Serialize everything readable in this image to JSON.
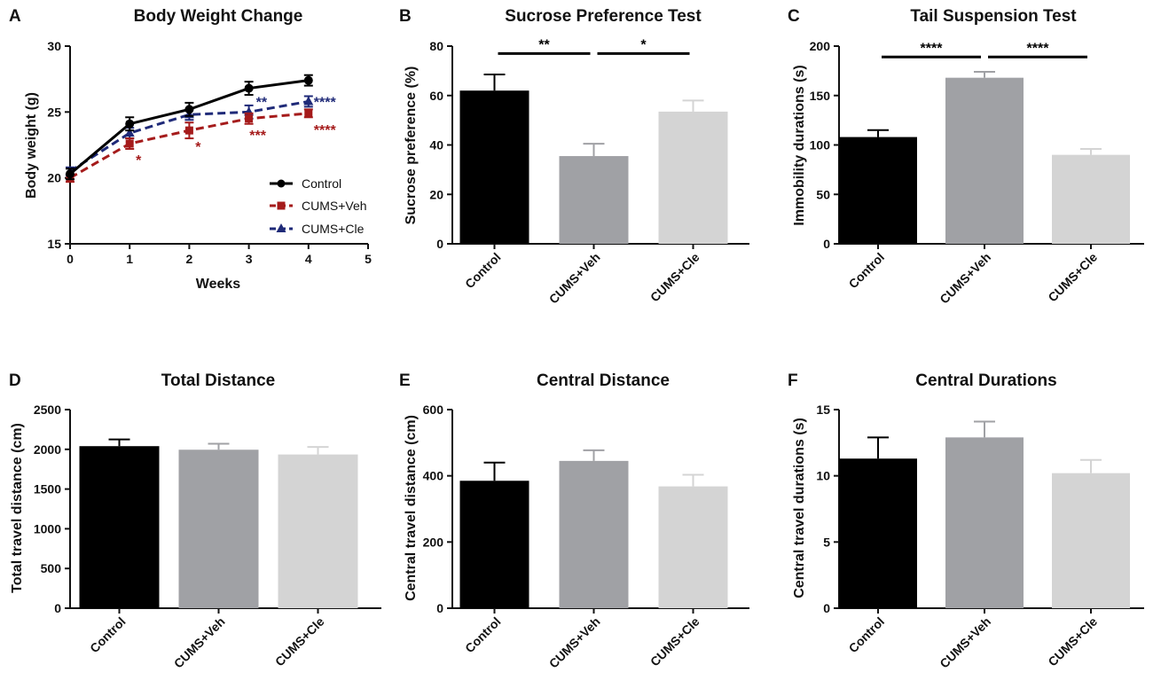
{
  "colors": {
    "control": "#000000",
    "veh_bar": "#a0a1a5",
    "cle_bar": "#d4d4d4",
    "veh_line": "#a51b1b",
    "cle_line": "#1f2a78"
  },
  "chart_data": [
    {
      "id": "A",
      "panel_label": "A",
      "type": "line",
      "title": "Body Weight Change",
      "xlabel": "Weeks",
      "ylabel": "Body weight (g)",
      "xlim": [
        0,
        5
      ],
      "ylim": [
        15,
        30
      ],
      "xticks": [
        0,
        1,
        2,
        3,
        4,
        5
      ],
      "yticks": [
        15,
        20,
        25,
        30
      ],
      "x": [
        0,
        1,
        2,
        3,
        4
      ],
      "series": [
        {
          "name": "Control",
          "values": [
            20.3,
            24.1,
            25.2,
            26.8,
            27.4
          ],
          "errors": [
            0.4,
            0.5,
            0.5,
            0.5,
            0.4
          ],
          "style": "solid",
          "marker": "circle",
          "color": "#000000"
        },
        {
          "name": "CUMS+Veh",
          "values": [
            20.0,
            22.6,
            23.6,
            24.5,
            24.9
          ],
          "errors": [
            0.3,
            0.4,
            0.6,
            0.4,
            0.3
          ],
          "style": "dashed",
          "marker": "square",
          "color": "#a51b1b"
        },
        {
          "name": "CUMS+Cle",
          "values": [
            20.5,
            23.4,
            24.8,
            25.0,
            25.8
          ],
          "errors": [
            0.3,
            0.4,
            0.4,
            0.5,
            0.4
          ],
          "style": "dashed",
          "marker": "triangle",
          "color": "#1f2a78"
        }
      ],
      "legend": [
        "Control",
        "CUMS+Veh",
        "CUMS+Cle"
      ],
      "legend_position": "bottom-right",
      "annotations": [
        {
          "text": "*",
          "x": 1,
          "series": "CUMS+Veh",
          "placement": "below",
          "color": "#a51b1b"
        },
        {
          "text": "*",
          "x": 2,
          "series": "CUMS+Veh",
          "placement": "below",
          "color": "#a51b1b"
        },
        {
          "text": "***",
          "x": 3,
          "series": "CUMS+Veh",
          "placement": "below",
          "color": "#a51b1b"
        },
        {
          "text": "****",
          "x": 4,
          "series": "CUMS+Veh",
          "placement": "right-below",
          "color": "#a51b1b"
        },
        {
          "text": "**",
          "x": 3,
          "series": "CUMS+Cle",
          "placement": "above-right",
          "color": "#1f2a78"
        },
        {
          "text": "****",
          "x": 4,
          "series": "CUMS+Cle",
          "placement": "right",
          "color": "#1f2a78"
        }
      ]
    },
    {
      "id": "B",
      "panel_label": "B",
      "type": "bar",
      "title": "Sucrose Preference Test",
      "ylabel": "Sucrose preference (%)",
      "categories": [
        "Control",
        "CUMS+Veh",
        "CUMS+Cle"
      ],
      "values": [
        62,
        35.5,
        53.5
      ],
      "errors": [
        6.5,
        5,
        4.5
      ],
      "ylim": [
        0,
        80
      ],
      "yticks": [
        0,
        20,
        40,
        60,
        80
      ],
      "significance": [
        {
          "from": 0,
          "to": 1,
          "label": "**",
          "y": 77
        },
        {
          "from": 1,
          "to": 2,
          "label": "*",
          "y": 77
        }
      ]
    },
    {
      "id": "C",
      "panel_label": "C",
      "type": "bar",
      "title": "Tail Suspension Test",
      "ylabel": "Immobility durations (s)",
      "categories": [
        "Control",
        "CUMS+Veh",
        "CUMS+Cle"
      ],
      "values": [
        108,
        168,
        90
      ],
      "errors": [
        7,
        6,
        6
      ],
      "ylim": [
        0,
        200
      ],
      "yticks": [
        0,
        50,
        100,
        150,
        200
      ],
      "significance": [
        {
          "from": 0,
          "to": 1,
          "label": "****",
          "y": 189
        },
        {
          "from": 1,
          "to": 2,
          "label": "****",
          "y": 189
        }
      ]
    },
    {
      "id": "D",
      "panel_label": "D",
      "type": "bar",
      "title": "Total Distance",
      "ylabel": "Total travel distance (cm)",
      "categories": [
        "Control",
        "CUMS+Veh",
        "CUMS+Cle"
      ],
      "values": [
        2040,
        1995,
        1935
      ],
      "errors": [
        85,
        75,
        95
      ],
      "ylim": [
        0,
        2500
      ],
      "yticks": [
        0,
        500,
        1000,
        1500,
        2000,
        2500
      ],
      "significance": []
    },
    {
      "id": "E",
      "panel_label": "E",
      "type": "bar",
      "title": "Central Distance",
      "ylabel": "Central travel distance (cm)",
      "categories": [
        "Control",
        "CUMS+Veh",
        "CUMS+Cle"
      ],
      "values": [
        385,
        445,
        368
      ],
      "errors": [
        55,
        32,
        35
      ],
      "ylim": [
        0,
        600
      ],
      "yticks": [
        0,
        200,
        400,
        600
      ],
      "significance": []
    },
    {
      "id": "F",
      "panel_label": "F",
      "type": "bar",
      "title": "Central Durations",
      "ylabel": "Central travel durations (s)",
      "categories": [
        "Control",
        "CUMS+Veh",
        "CUMS+Cle"
      ],
      "values": [
        11.3,
        12.9,
        10.2
      ],
      "errors": [
        1.6,
        1.2,
        1.0
      ],
      "ylim": [
        0,
        15
      ],
      "yticks": [
        0,
        5,
        10,
        15
      ],
      "significance": []
    }
  ]
}
